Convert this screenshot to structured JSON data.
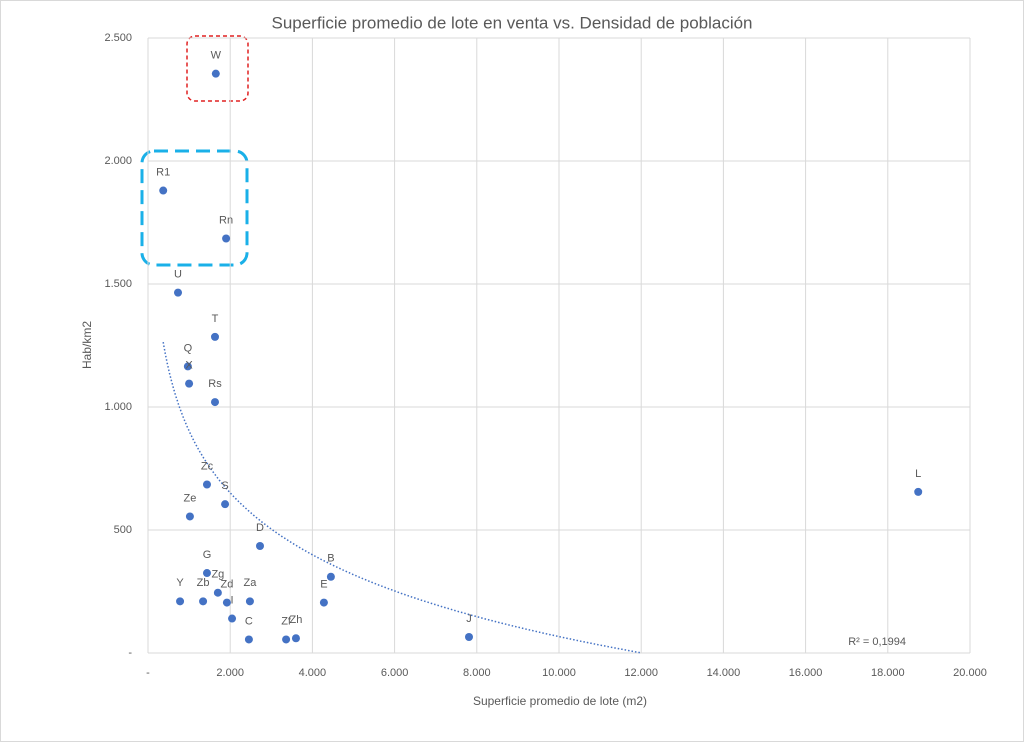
{
  "chart_data": {
    "type": "scatter",
    "title": "Superficie promedio de lote en venta vs. Densidad de población",
    "x_label": "Superficie promedio de lote (m2)",
    "y_label": "Hab/km2",
    "point_labels": [
      "W",
      "R1",
      "Rn",
      "U",
      "T",
      "Q",
      "X",
      "Rs",
      "L",
      "Zc",
      "S",
      "Ze",
      "D",
      "G",
      "B",
      "Y",
      "Zb",
      "Zg",
      "Zd",
      "I",
      "Za",
      "E",
      "C",
      "Zf",
      "Zh",
      "J"
    ],
    "x": [
      1650,
      370,
      1900,
      730,
      1630,
      970,
      1000,
      1630,
      18740,
      1435,
      1875,
      1020,
      2725,
      1435,
      4450,
      780,
      1340,
      1700,
      1920,
      2045,
      2480,
      4280,
      2455,
      3360,
      3600,
      7810
    ],
    "values": [
      2355,
      1880,
      1685,
      1465,
      1285,
      1165,
      1095,
      1020,
      655,
      685,
      605,
      555,
      435,
      325,
      310,
      210,
      210,
      245,
      205,
      140,
      210,
      205,
      55,
      55,
      60,
      65
    ],
    "color": "#4472c4",
    "trendline": "logarithmic",
    "trendline_color": "#4472c4",
    "r2_label": "R² = 0,1994",
    "xlim": [
      0,
      20000
    ],
    "xticks": [
      {
        "value": 0,
        "label": "-"
      },
      {
        "value": 2000,
        "label": "2.000"
      },
      {
        "value": 4000,
        "label": "4.000"
      },
      {
        "value": 6000,
        "label": "6.000"
      },
      {
        "value": 8000,
        "label": "8.000"
      },
      {
        "value": 10000,
        "label": "10.000"
      },
      {
        "value": 12000,
        "label": "12.000"
      },
      {
        "value": 14000,
        "label": "14.000"
      },
      {
        "value": 16000,
        "label": "16.000"
      },
      {
        "value": 18000,
        "label": "18.000"
      },
      {
        "value": 20000,
        "label": "20.000"
      }
    ],
    "ylim": [
      0,
      2500
    ],
    "yticks": [
      {
        "value": 0,
        "label": "-"
      },
      500,
      {
        "value": 1000,
        "label": "1.000"
      },
      {
        "value": 1500,
        "label": "1.500"
      },
      {
        "value": 2000,
        "label": "2.000"
      },
      {
        "value": 2500,
        "label": "2.500"
      }
    ],
    "grid": true
  }
}
